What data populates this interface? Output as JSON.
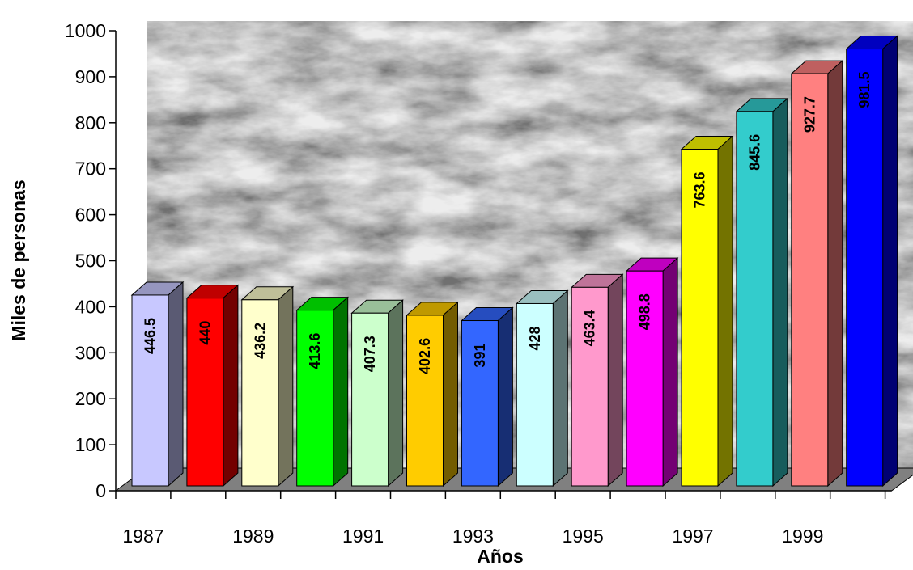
{
  "chart_data": {
    "type": "bar",
    "xlabel": "Años",
    "ylabel": "Miles de personas",
    "ylim": [
      0,
      1000
    ],
    "y_ticks": [
      "0",
      "100",
      "200",
      "300",
      "400",
      "500",
      "600",
      "700",
      "800",
      "900",
      "1000"
    ],
    "categories": [
      "1987",
      "1988",
      "1989",
      "1990",
      "1991",
      "1992",
      "1993",
      "1994",
      "1995",
      "1996",
      "1997",
      "1998",
      "1999",
      "2000"
    ],
    "x_tick_labels": [
      "1987",
      "",
      "1989",
      "",
      "1991",
      "",
      "1993",
      "",
      "1995",
      "",
      "1997",
      "",
      "1999",
      ""
    ],
    "values": [
      446.5,
      440,
      436.2,
      413.6,
      407.3,
      402.6,
      391,
      428,
      463.4,
      498.8,
      763.6,
      845.6,
      927.7,
      981.5
    ],
    "data_labels": [
      "446.5",
      "440",
      "436.2",
      "413.6",
      "407.3",
      "402.6",
      "391",
      "428",
      "463.4",
      "498.8",
      "763.6",
      "845.6",
      "927.7",
      "981.5"
    ],
    "bar_colors": [
      "#c8c8ff",
      "#ff0000",
      "#ffffcc",
      "#00ff00",
      "#ccffcc",
      "#ffcc00",
      "#3366ff",
      "#ccffff",
      "#ff99cc",
      "#ff00ff",
      "#ffff00",
      "#33cccc",
      "#ff8080",
      "#0000ff"
    ],
    "background": "gray marble texture",
    "floor_color": "#808080",
    "grid": false,
    "legend": "none"
  }
}
